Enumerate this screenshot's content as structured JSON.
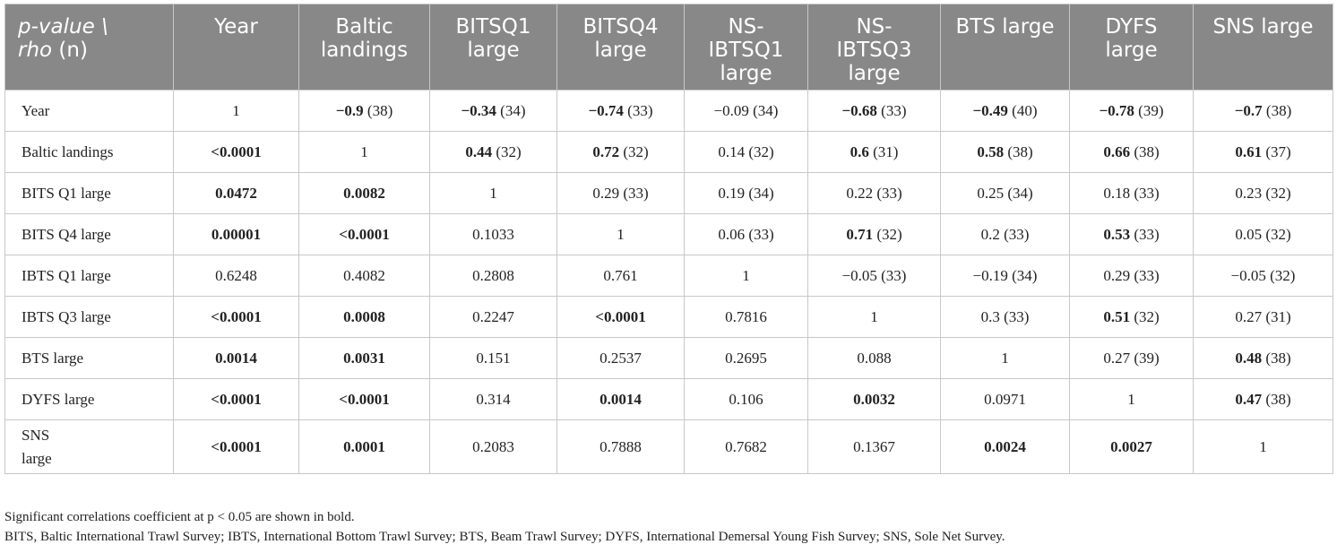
{
  "header": {
    "corner_line1": "p-value \\",
    "corner_line2_italic": "rho",
    "corner_line2_rest": " (n)",
    "columns": [
      "Year",
      "Baltic landings",
      "BITSQ1 large",
      "BITSQ4 large",
      "NS-IBTSQ1 large",
      "NS-IBTSQ3 large",
      "BTS large",
      "DYFS large",
      "SNS large"
    ]
  },
  "rows": [
    {
      "label": "Year",
      "cells": [
        {
          "v": "1",
          "n": "",
          "bold": false
        },
        {
          "v": "−0.9",
          "n": " (38)",
          "bold": true
        },
        {
          "v": "−0.34",
          "n": " (34)",
          "bold": true
        },
        {
          "v": "−0.74",
          "n": " (33)",
          "bold": true
        },
        {
          "v": "−0.09",
          "n": " (34)",
          "bold": false
        },
        {
          "v": "−0.68",
          "n": " (33)",
          "bold": true
        },
        {
          "v": "−0.49",
          "n": " (40)",
          "bold": true
        },
        {
          "v": "−0.78",
          "n": " (39)",
          "bold": true
        },
        {
          "v": "−0.7",
          "n": " (38)",
          "bold": true
        }
      ]
    },
    {
      "label": "Baltic landings",
      "cells": [
        {
          "v": "<0.0001",
          "n": "",
          "bold": true
        },
        {
          "v": "1",
          "n": "",
          "bold": false
        },
        {
          "v": "0.44",
          "n": " (32)",
          "bold": true
        },
        {
          "v": "0.72",
          "n": " (32)",
          "bold": true
        },
        {
          "v": "0.14",
          "n": " (32)",
          "bold": false
        },
        {
          "v": "0.6",
          "n": " (31)",
          "bold": true
        },
        {
          "v": "0.58",
          "n": " (38)",
          "bold": true
        },
        {
          "v": "0.66",
          "n": " (38)",
          "bold": true
        },
        {
          "v": "0.61",
          "n": " (37)",
          "bold": true
        }
      ]
    },
    {
      "label": "BITS Q1 large",
      "cells": [
        {
          "v": "0.0472",
          "n": "",
          "bold": true
        },
        {
          "v": "0.0082",
          "n": "",
          "bold": true
        },
        {
          "v": "1",
          "n": "",
          "bold": false
        },
        {
          "v": "0.29",
          "n": " (33)",
          "bold": false
        },
        {
          "v": "0.19",
          "n": " (34)",
          "bold": false
        },
        {
          "v": "0.22",
          "n": " (33)",
          "bold": false
        },
        {
          "v": "0.25",
          "n": " (34)",
          "bold": false
        },
        {
          "v": "0.18",
          "n": " (33)",
          "bold": false
        },
        {
          "v": "0.23",
          "n": " (32)",
          "bold": false
        }
      ]
    },
    {
      "label": "BITS Q4 large",
      "cells": [
        {
          "v": "0.00001",
          "n": "",
          "bold": true
        },
        {
          "v": "<0.0001",
          "n": "",
          "bold": true
        },
        {
          "v": "0.1033",
          "n": "",
          "bold": false
        },
        {
          "v": "1",
          "n": "",
          "bold": false
        },
        {
          "v": "0.06",
          "n": " (33)",
          "bold": false
        },
        {
          "v": "0.71",
          "n": " (32)",
          "bold": true
        },
        {
          "v": "0.2",
          "n": " (33)",
          "bold": false
        },
        {
          "v": "0.53",
          "n": " (33)",
          "bold": true
        },
        {
          "v": "0.05",
          "n": " (32)",
          "bold": false
        }
      ]
    },
    {
      "label": "IBTS Q1 large",
      "cells": [
        {
          "v": "0.6248",
          "n": "",
          "bold": false
        },
        {
          "v": "0.4082",
          "n": "",
          "bold": false
        },
        {
          "v": "0.2808",
          "n": "",
          "bold": false
        },
        {
          "v": "0.761",
          "n": "",
          "bold": false
        },
        {
          "v": "1",
          "n": "",
          "bold": false
        },
        {
          "v": "−0.05",
          "n": " (33)",
          "bold": false
        },
        {
          "v": "−0.19",
          "n": " (34)",
          "bold": false
        },
        {
          "v": "0.29",
          "n": " (33)",
          "bold": false
        },
        {
          "v": "−0.05",
          "n": " (32)",
          "bold": false
        }
      ]
    },
    {
      "label": "IBTS Q3 large",
      "cells": [
        {
          "v": "<0.0001",
          "n": "",
          "bold": true
        },
        {
          "v": "0.0008",
          "n": "",
          "bold": true
        },
        {
          "v": "0.2247",
          "n": "",
          "bold": false
        },
        {
          "v": "<0.0001",
          "n": "",
          "bold": true
        },
        {
          "v": "0.7816",
          "n": "",
          "bold": false
        },
        {
          "v": "1",
          "n": "",
          "bold": false
        },
        {
          "v": "0.3",
          "n": " (33)",
          "bold": false
        },
        {
          "v": "0.51",
          "n": " (32)",
          "bold": true
        },
        {
          "v": "0.27",
          "n": " (31)",
          "bold": false
        }
      ]
    },
    {
      "label": "BTS large",
      "cells": [
        {
          "v": "0.0014",
          "n": "",
          "bold": true
        },
        {
          "v": "0.0031",
          "n": "",
          "bold": true
        },
        {
          "v": "0.151",
          "n": "",
          "bold": false
        },
        {
          "v": "0.2537",
          "n": "",
          "bold": false
        },
        {
          "v": "0.2695",
          "n": "",
          "bold": false
        },
        {
          "v": "0.088",
          "n": "",
          "bold": false
        },
        {
          "v": "1",
          "n": "",
          "bold": false
        },
        {
          "v": "0.27",
          "n": " (39)",
          "bold": false
        },
        {
          "v": "0.48",
          "n": " (38)",
          "bold": true
        }
      ]
    },
    {
      "label": "DYFS large",
      "cells": [
        {
          "v": "<0.0001",
          "n": "",
          "bold": true
        },
        {
          "v": "<0.0001",
          "n": "",
          "bold": true
        },
        {
          "v": "0.314",
          "n": "",
          "bold": false
        },
        {
          "v": "0.0014",
          "n": "",
          "bold": true
        },
        {
          "v": "0.106",
          "n": "",
          "bold": false
        },
        {
          "v": "0.0032",
          "n": "",
          "bold": true
        },
        {
          "v": "0.0971",
          "n": "",
          "bold": false
        },
        {
          "v": "1",
          "n": "",
          "bold": false
        },
        {
          "v": "0.47",
          "n": " (38)",
          "bold": true
        }
      ]
    },
    {
      "label": "SNS large",
      "label_line1": "SNS",
      "label_line2": "large",
      "cells": [
        {
          "v": "<0.0001",
          "n": "",
          "bold": true
        },
        {
          "v": "0.0001",
          "n": "",
          "bold": true
        },
        {
          "v": "0.2083",
          "n": "",
          "bold": false
        },
        {
          "v": "0.7888",
          "n": "",
          "bold": false
        },
        {
          "v": "0.7682",
          "n": "",
          "bold": false
        },
        {
          "v": "0.1367",
          "n": "",
          "bold": false
        },
        {
          "v": "0.0024",
          "n": "",
          "bold": true
        },
        {
          "v": "0.0027",
          "n": "",
          "bold": true
        },
        {
          "v": "1",
          "n": "",
          "bold": false
        }
      ]
    }
  ],
  "footnotes": [
    "Significant correlations coefficient at p < 0.05 are shown in bold.",
    "BITS, Baltic International Trawl Survey; IBTS, International Bottom Trawl Survey; BTS, Beam Trawl Survey; DYFS, International Demersal Young Fish Survey; SNS, Sole Net Survey."
  ],
  "colors": {
    "header_bg": "#888888",
    "header_text": "#ffffff",
    "grid": "#c8c8c8"
  }
}
